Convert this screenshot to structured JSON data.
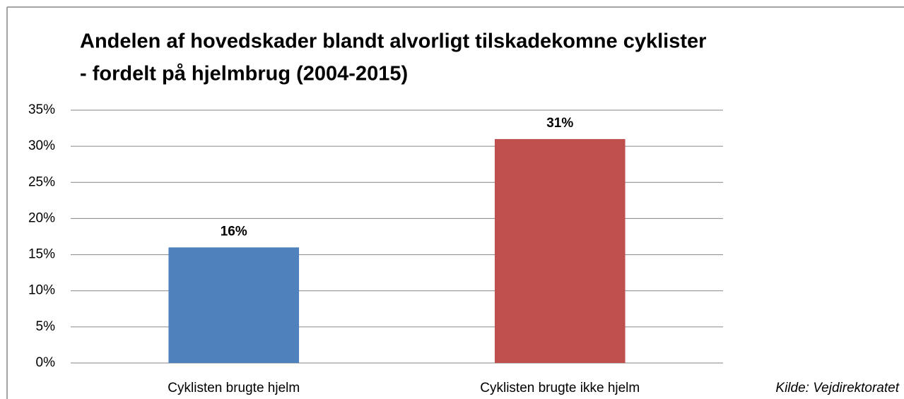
{
  "chart_data": {
    "type": "bar",
    "title": [
      "Andelen af hovedskader blandt alvorligt tilskadekomne cyklister",
      "- fordelt på hjelmbrug (2004-2015)"
    ],
    "categories": [
      "Cyklisten brugte hjelm",
      "Cyklisten brugte ikke hjelm"
    ],
    "values": [
      16,
      31
    ],
    "value_labels": [
      "16%",
      "31%"
    ],
    "colors": [
      "#4f81bd",
      "#c0504d"
    ],
    "ylim": [
      0,
      35
    ],
    "yticks": [
      {
        "value": 0,
        "label": "0%"
      },
      {
        "value": 5,
        "label": "5%"
      },
      {
        "value": 10,
        "label": "10%"
      },
      {
        "value": 15,
        "label": "15%"
      },
      {
        "value": 20,
        "label": "20%"
      },
      {
        "value": 25,
        "label": "25%"
      },
      {
        "value": 30,
        "label": "30%"
      },
      {
        "value": 35,
        "label": "35%"
      }
    ],
    "grid": true,
    "annotation": "Kilde: Vejdirektoratet"
  }
}
